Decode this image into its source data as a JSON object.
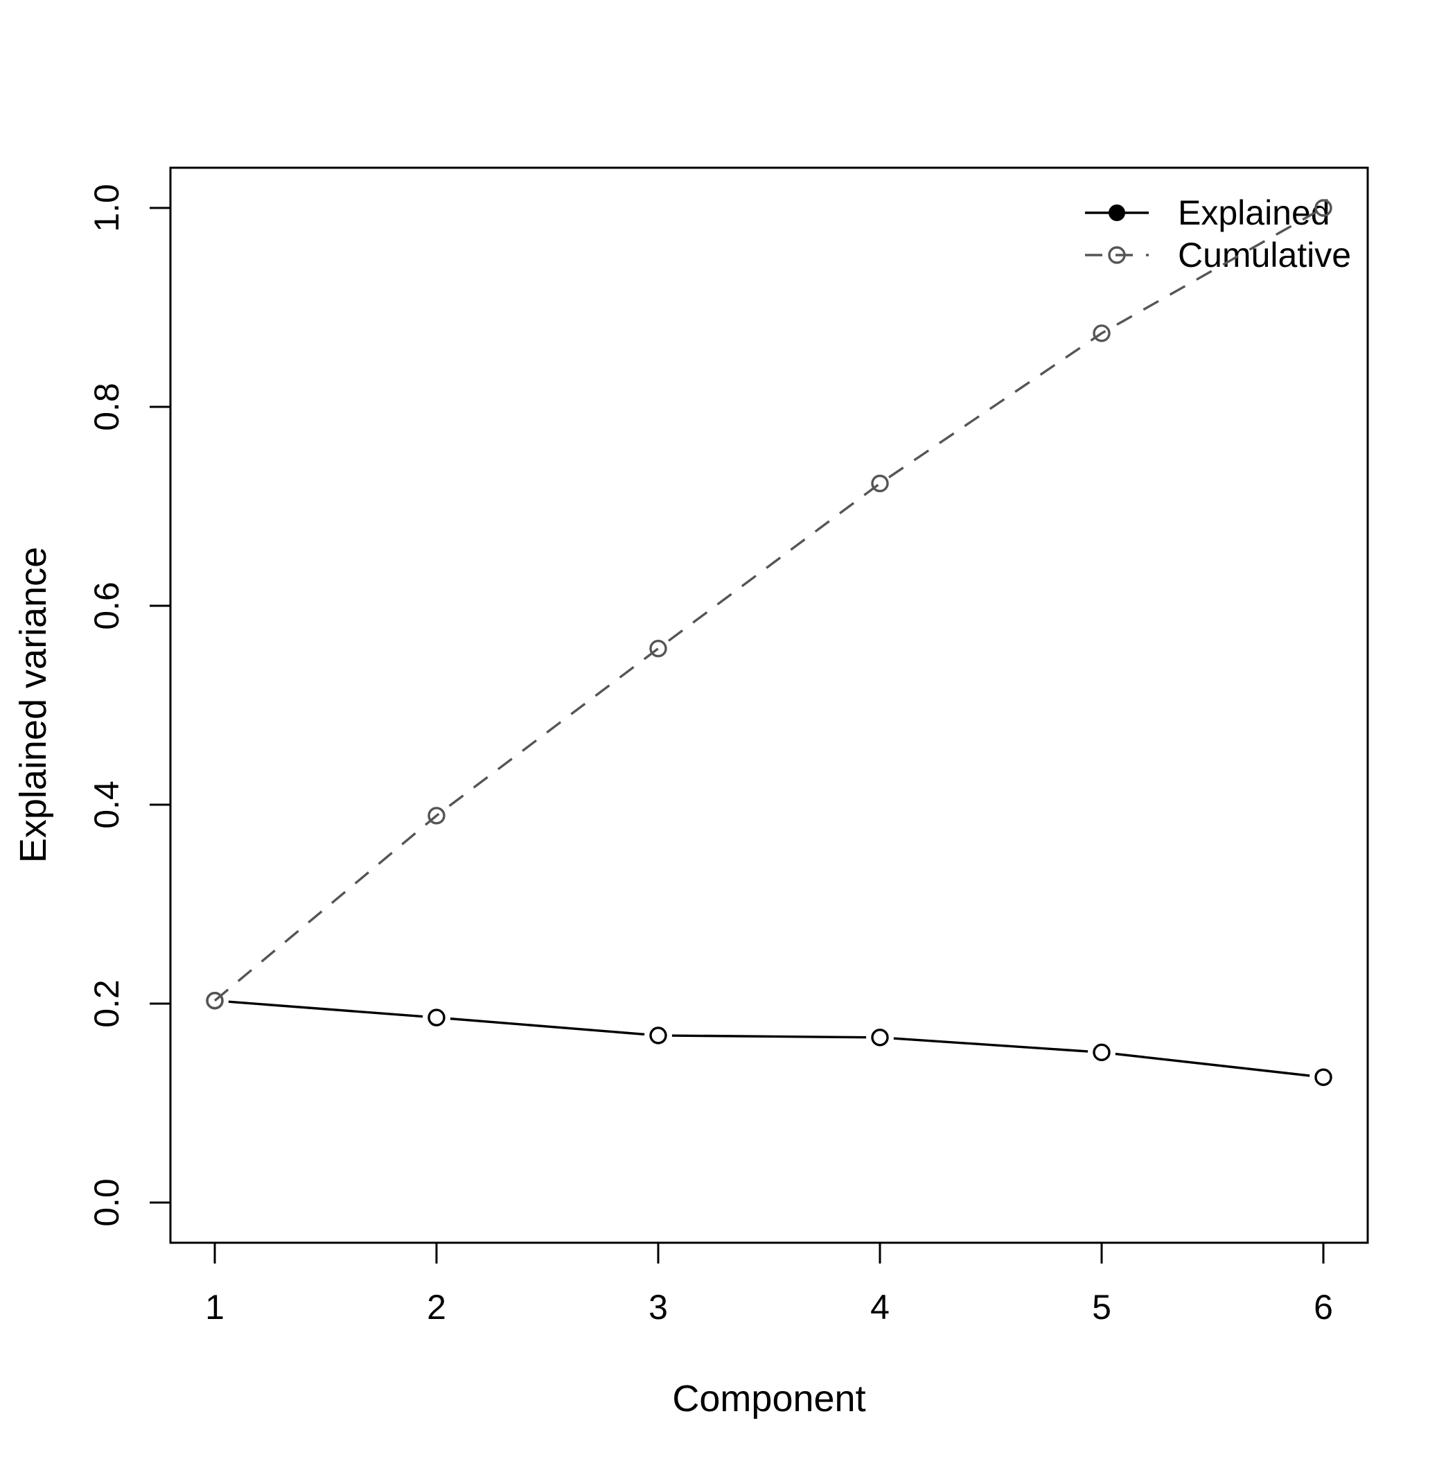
{
  "chart_data": {
    "type": "line",
    "title": "",
    "xlabel": "Component",
    "ylabel": "Explained variance",
    "x": [
      1,
      2,
      3,
      4,
      5,
      6
    ],
    "x_tick_labels": [
      "1",
      "2",
      "3",
      "4",
      "5",
      "6"
    ],
    "y_ticks": [
      0.0,
      0.2,
      0.4,
      0.6,
      0.8,
      1.0
    ],
    "y_tick_labels": [
      "0.0",
      "0.2",
      "0.4",
      "0.6",
      "0.8",
      "1.0"
    ],
    "xlim": [
      1,
      6
    ],
    "ylim": [
      0.0,
      1.0
    ],
    "grid": false,
    "legend_position": "topright",
    "series": [
      {
        "name": "Explained",
        "values": [
          0.203,
          0.186,
          0.168,
          0.166,
          0.151,
          0.126
        ],
        "color": "#000000",
        "line_style": "solid",
        "marker": "open-circle",
        "legend_marker": "filled-circle",
        "line_gaps_at_points": true
      },
      {
        "name": "Cumulative",
        "values": [
          0.203,
          0.389,
          0.557,
          0.723,
          0.874,
          1.0
        ],
        "color": "#555555",
        "line_style": "dashed",
        "marker": "open-circle",
        "legend_marker": "open-circle",
        "line_gaps_at_points": false
      }
    ]
  },
  "colors": {
    "background": "#ffffff",
    "axis": "#000000",
    "explained": "#000000",
    "cumulative": "#555555"
  }
}
